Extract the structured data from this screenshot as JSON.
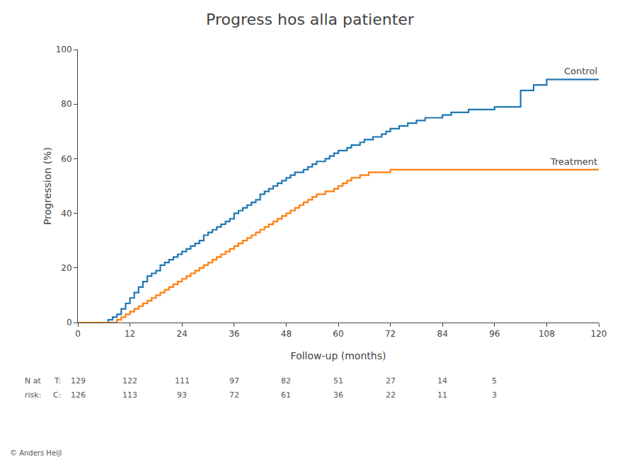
{
  "chart_data": {
    "type": "step",
    "title": "Progress hos alla patienter",
    "xlabel": "Follow-up (months)",
    "ylabel": "Progression (%)",
    "series": [
      {
        "name": "Control",
        "x": [
          0,
          6,
          7,
          8,
          9,
          10,
          11,
          12,
          13,
          14,
          15,
          16,
          17,
          18,
          19,
          20,
          21,
          22,
          23,
          24,
          25,
          26,
          27,
          28,
          29,
          30,
          31,
          32,
          33,
          34,
          35,
          36,
          37,
          38,
          39,
          40,
          41,
          42,
          43,
          44,
          45,
          46,
          47,
          48,
          49,
          50,
          51,
          52,
          53,
          54,
          55,
          56,
          57,
          58,
          59,
          60,
          61,
          62,
          63,
          64,
          65,
          66,
          67,
          68,
          69,
          70,
          71,
          72,
          74,
          76,
          78,
          80,
          82,
          84,
          86,
          88,
          90,
          96,
          102,
          105,
          108,
          120
        ],
        "values": [
          0,
          0,
          1,
          2,
          3,
          5,
          7,
          9,
          11,
          13,
          15,
          17,
          18,
          19,
          21,
          22,
          23,
          24,
          25,
          26,
          27,
          28,
          29,
          30,
          32,
          33,
          34,
          35,
          36,
          37,
          38,
          40,
          41,
          42,
          43,
          44,
          45,
          47,
          48,
          49,
          50,
          51,
          52,
          53,
          54,
          55,
          55,
          56,
          57,
          58,
          59,
          59,
          60,
          61,
          62,
          63,
          63,
          64,
          65,
          65,
          66,
          67,
          67,
          68,
          68,
          69,
          70,
          71,
          72,
          73,
          74,
          75,
          75,
          76,
          77,
          77,
          78,
          79,
          85,
          87,
          89,
          89
        ]
      },
      {
        "name": "Treatment",
        "x": [
          0,
          8,
          9,
          10,
          11,
          12,
          13,
          14,
          15,
          16,
          17,
          18,
          19,
          20,
          21,
          22,
          23,
          24,
          25,
          26,
          27,
          28,
          29,
          30,
          31,
          32,
          33,
          34,
          35,
          36,
          37,
          38,
          39,
          40,
          41,
          42,
          43,
          44,
          45,
          46,
          47,
          48,
          49,
          50,
          51,
          52,
          53,
          54,
          55,
          56,
          57,
          58,
          59,
          60,
          61,
          62,
          63,
          64,
          65,
          66,
          67,
          68,
          69,
          70,
          71,
          72,
          74,
          76,
          78,
          80,
          84,
          120
        ],
        "values": [
          0,
          0,
          1,
          2,
          3,
          4,
          5,
          6,
          7,
          8,
          9,
          10,
          11,
          12,
          13,
          14,
          15,
          16,
          17,
          18,
          19,
          20,
          21,
          22,
          23,
          24,
          25,
          26,
          27,
          28,
          29,
          30,
          31,
          32,
          33,
          34,
          35,
          36,
          37,
          38,
          39,
          40,
          41,
          42,
          43,
          44,
          45,
          46,
          47,
          47,
          48,
          48,
          49,
          50,
          51,
          52,
          53,
          53,
          54,
          54,
          55,
          55,
          55,
          55,
          55,
          56,
          56,
          56,
          56,
          56,
          56,
          56
        ]
      }
    ],
    "xlim": [
      0,
      120
    ],
    "ylim": [
      0,
      100
    ],
    "xticks": [
      0,
      12,
      24,
      36,
      48,
      60,
      72,
      84,
      96,
      108,
      120
    ],
    "yticks": [
      0,
      20,
      40,
      60,
      80,
      100
    ],
    "grid": false,
    "risk_table": {
      "label": [
        "N at",
        "risk:"
      ],
      "times": [
        0,
        12,
        24,
        36,
        48,
        60,
        72,
        84,
        96
      ],
      "rows": [
        {
          "label": "T:",
          "values": [
            129,
            122,
            111,
            97,
            82,
            51,
            27,
            14,
            5
          ]
        },
        {
          "label": "C:",
          "values": [
            126,
            113,
            93,
            72,
            61,
            36,
            22,
            11,
            3
          ]
        }
      ]
    },
    "footnote": "© Anders Heijl"
  }
}
